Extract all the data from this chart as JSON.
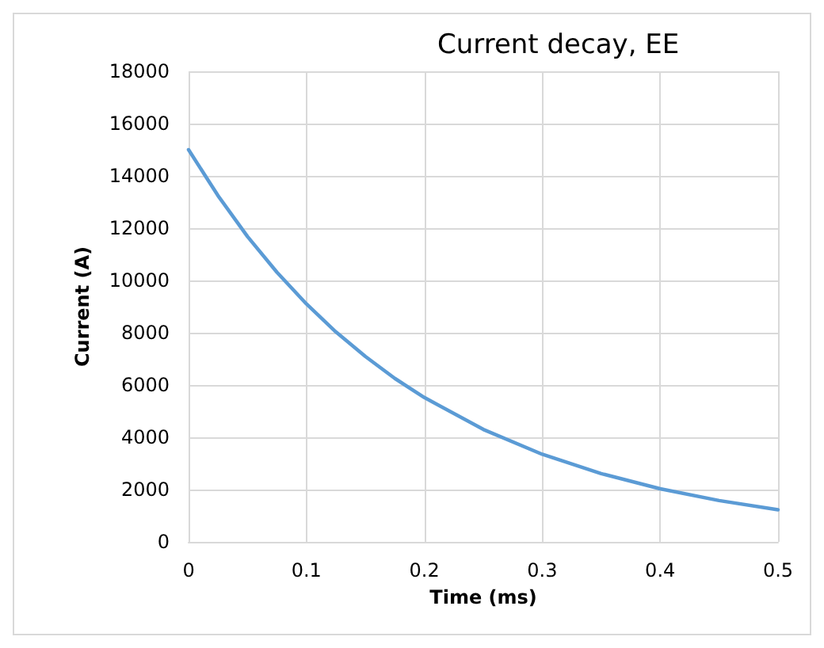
{
  "chart_data": {
    "type": "line",
    "title": "Current decay, EE",
    "xlabel": "Time (ms)",
    "ylabel": "Current (A)",
    "x": [
      0,
      0.025,
      0.05,
      0.075,
      0.1,
      0.125,
      0.15,
      0.175,
      0.2,
      0.25,
      0.3,
      0.35,
      0.4,
      0.45,
      0.5
    ],
    "series": [
      {
        "color": "#5b9bd5",
        "values": [
          15000,
          13240,
          11680,
          10310,
          9100,
          8030,
          7090,
          6250,
          5520,
          4300,
          3350,
          2610,
          2030,
          1580,
          1230
        ]
      }
    ],
    "xlim": [
      0,
      0.5
    ],
    "xticks": [
      0,
      0.1,
      0.2,
      0.3,
      0.4,
      0.5
    ],
    "ylim": [
      0,
      18000
    ],
    "yticks": [
      0,
      2000,
      4000,
      6000,
      8000,
      10000,
      12000,
      14000,
      16000,
      18000
    ],
    "grid": true,
    "marker": "none",
    "line_style": "solid"
  }
}
